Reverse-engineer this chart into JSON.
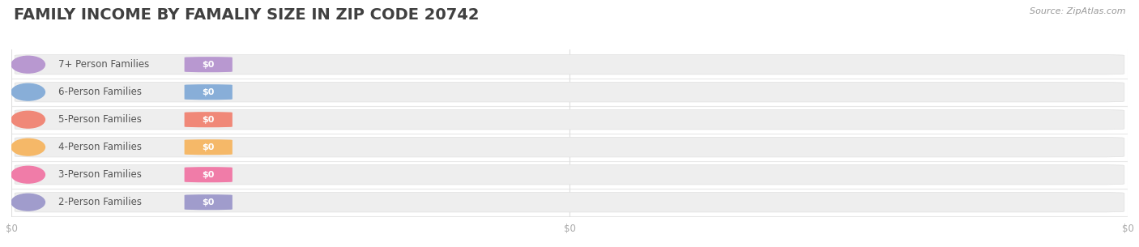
{
  "title": "FAMILY INCOME BY FAMALIY SIZE IN ZIP CODE 20742",
  "source": "Source: ZipAtlas.com",
  "categories": [
    "2-Person Families",
    "3-Person Families",
    "4-Person Families",
    "5-Person Families",
    "6-Person Families",
    "7+ Person Families"
  ],
  "values": [
    0,
    0,
    0,
    0,
    0,
    0
  ],
  "bar_colors": [
    "#a09ccc",
    "#f07ca8",
    "#f5b868",
    "#f08878",
    "#88aed8",
    "#b898d0"
  ],
  "background_color": "#ffffff",
  "title_color": "#404040",
  "label_text_color": "#555555",
  "value_label_color": "#ffffff",
  "source_color": "#999999",
  "title_fontsize": 14,
  "label_fontsize": 8.5,
  "source_fontsize": 8,
  "tick_fontsize": 8.5,
  "tick_color": "#aaaaaa",
  "bar_bg_color": "#eeeeee",
  "bar_bg_edge_color": "#e0e0e0",
  "grid_color": "#dddddd",
  "row_sep_color": "#e8e8e8"
}
